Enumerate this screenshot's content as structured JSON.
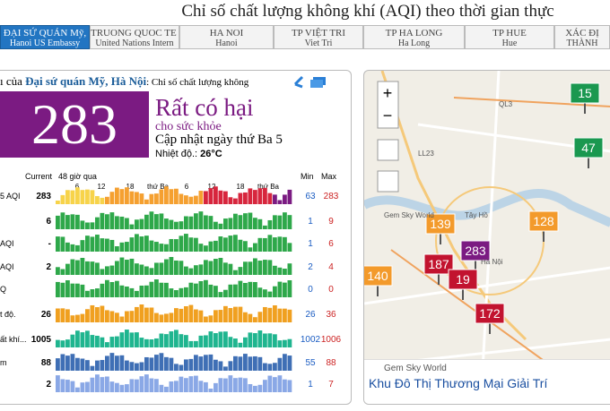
{
  "header": {
    "title": "Chỉ số chất lượng không khí (AQI) theo thời gian thực"
  },
  "tabs": [
    {
      "name": "ĐẠI SỨ QUÁN Mỹ,",
      "sub": "Hanoi US Embassy"
    },
    {
      "name": "TRUONG QUOC TE I",
      "sub": "United Nations Intern"
    },
    {
      "name": "HA NOI",
      "sub": "Hanoi"
    },
    {
      "name": "TP VIỆT TRI",
      "sub": "Viet Tri"
    },
    {
      "name": "TP HA LONG",
      "sub": "Ha Long"
    },
    {
      "name": "TP HUE",
      "sub": "Hue"
    },
    {
      "name": "XÁC ĐỊ",
      "sub": "THÀNH"
    }
  ],
  "station": {
    "heading_prefix": "ı của ",
    "heading_name": "Đại sứ quán Mỹ, Hà Nội",
    "heading_suffix": ": Chỉ số chất lượng không",
    "aqi": 283,
    "level": "Rất có hại",
    "level_sub": "cho sức khỏe",
    "updated": "Cập nhật ngày thứ Ba 5",
    "temperature_label": "Nhiệt độ.:",
    "temperature": "26°C"
  },
  "table": {
    "columns": [
      "Current",
      "48 giờ qua",
      "Min",
      "Max"
    ],
    "time_labels": [
      "6",
      "12",
      "18",
      "thứ Ba",
      "6",
      "12",
      "18",
      "thứ Ba"
    ],
    "rows": [
      {
        "label": "5 AQI",
        "current": "283",
        "min": "63",
        "max": "283"
      },
      {
        "label": "",
        "current": "6",
        "min": "1",
        "max": "9"
      },
      {
        "label": "AQI",
        "current": "-",
        "min": "1",
        "max": "6"
      },
      {
        "label": "AQI",
        "current": "2",
        "min": "2",
        "max": "4"
      },
      {
        "label": "Q",
        "min": "0",
        "max": "0"
      },
      {
        "label": "t độ.",
        "current": "26",
        "min": "26",
        "max": "36"
      },
      {
        "label": "ất khí...",
        "current": "1005",
        "min": "1002",
        "max": "1006"
      },
      {
        "label": "m",
        "current": "88",
        "min": "55",
        "max": "88"
      },
      {
        "label": "",
        "current": "2",
        "min": "1",
        "max": "7"
      }
    ]
  },
  "map": {
    "markers": [
      "15",
      "47",
      "139",
      "128",
      "283",
      "187",
      "19",
      "140",
      "172"
    ],
    "places": [
      "QL3",
      "LL23",
      "Tây Hồ",
      "Hà Nội",
      "Gem Sky World"
    ],
    "ad": {
      "advertiser": "Gem Sky World",
      "text": "Khu Đô Thị Thương Mại Giải Trí"
    }
  }
}
